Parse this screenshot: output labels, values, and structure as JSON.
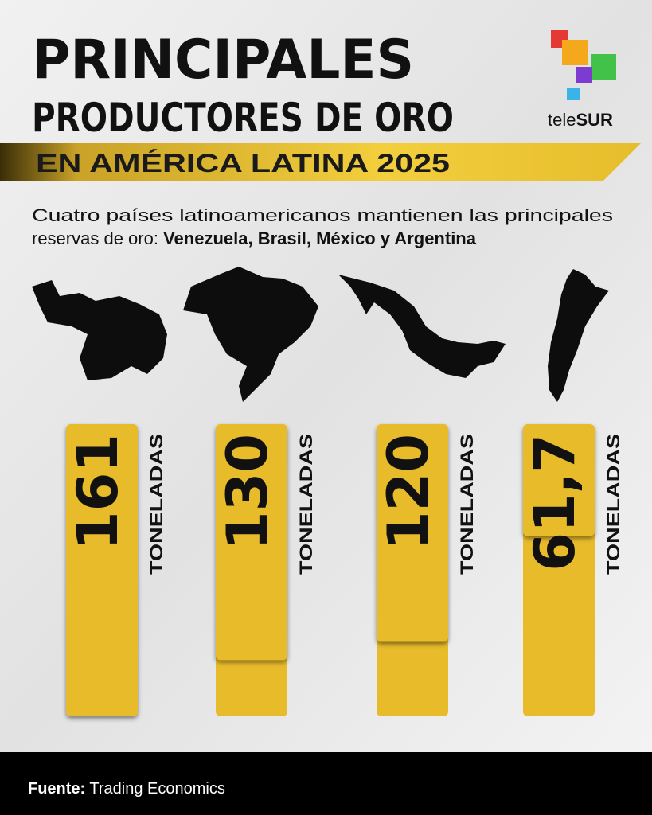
{
  "chart_data": {
    "type": "bar",
    "title_lines": [
      "PRINCIPALES",
      "PRODUCTORES DE ORO"
    ],
    "banner": "EN AMÉRICA LATINA 2025",
    "subtitle_lines": [
      "Cuatro países latinoamericanos mantienen las principales",
      "reservas de oro:"
    ],
    "subtitle_highlight": "Venezuela, Brasil, México y Argentina",
    "values": [
      161,
      130,
      120,
      61.7
    ],
    "value_labels": [
      "161",
      "130",
      "120",
      "61,7"
    ],
    "unit": "TONELADAS",
    "color": "#e8bb2b",
    "source_label": "Fuente:",
    "source": "Trading Economics",
    "logo": [
      "tele",
      "SUR"
    ]
  }
}
